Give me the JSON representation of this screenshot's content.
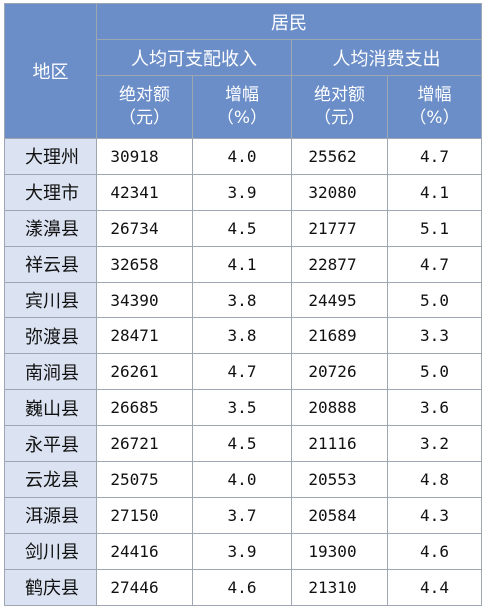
{
  "header": {
    "region_label": "地区",
    "group_label": "居民",
    "income_label": "人均可支配收入",
    "expense_label": "人均消费支出",
    "abs_line1": "绝对额",
    "abs_line2": "（元）",
    "growth_line1": "增幅",
    "growth_line2": "（%）"
  },
  "rows": [
    {
      "region": "大理州",
      "income": "30918",
      "income_growth": "4.0",
      "expense": "25562",
      "expense_growth": "4.7"
    },
    {
      "region": "大理市",
      "income": "42341",
      "income_growth": "3.9",
      "expense": "32080",
      "expense_growth": "4.1"
    },
    {
      "region": "漾濞县",
      "income": "26734",
      "income_growth": "4.5",
      "expense": "21777",
      "expense_growth": "5.1"
    },
    {
      "region": "祥云县",
      "income": "32658",
      "income_growth": "4.1",
      "expense": "22877",
      "expense_growth": "4.7"
    },
    {
      "region": "宾川县",
      "income": "34390",
      "income_growth": "3.8",
      "expense": "24495",
      "expense_growth": "5.0"
    },
    {
      "region": "弥渡县",
      "income": "28471",
      "income_growth": "3.8",
      "expense": "21689",
      "expense_growth": "3.3"
    },
    {
      "region": "南涧县",
      "income": "26261",
      "income_growth": "4.7",
      "expense": "20726",
      "expense_growth": "5.0"
    },
    {
      "region": "巍山县",
      "income": "26685",
      "income_growth": "3.5",
      "expense": "20888",
      "expense_growth": "3.6"
    },
    {
      "region": "永平县",
      "income": "26721",
      "income_growth": "4.5",
      "expense": "21116",
      "expense_growth": "3.2"
    },
    {
      "region": "云龙县",
      "income": "25075",
      "income_growth": "4.0",
      "expense": "20553",
      "expense_growth": "4.8"
    },
    {
      "region": "洱源县",
      "income": "27150",
      "income_growth": "3.7",
      "expense": "20584",
      "expense_growth": "4.3"
    },
    {
      "region": "剑川县",
      "income": "24416",
      "income_growth": "3.9",
      "expense": "19300",
      "expense_growth": "4.6"
    },
    {
      "region": "鹤庆县",
      "income": "27446",
      "income_growth": "4.6",
      "expense": "21310",
      "expense_growth": "4.4"
    }
  ]
}
